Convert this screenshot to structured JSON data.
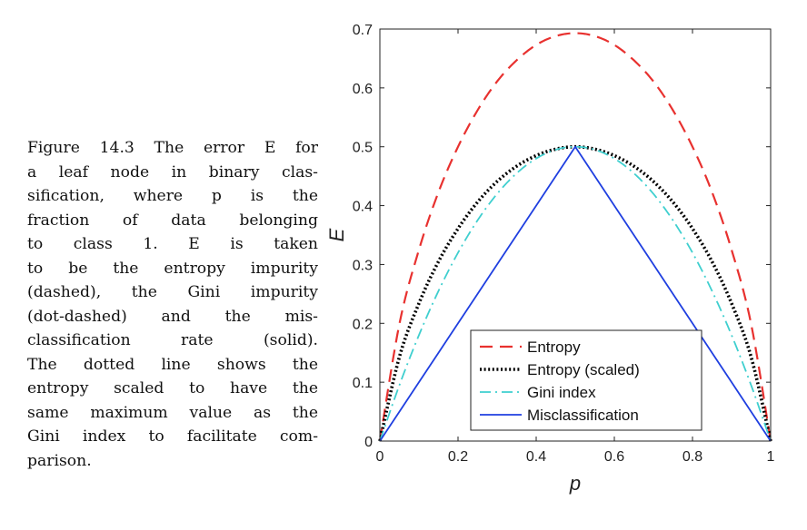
{
  "caption": {
    "lines": [
      "Figure 14.3 The error E for",
      "a leaf node in binary clas-",
      "sification, where p is the",
      "fraction of data belonging",
      "to class 1.   E is taken",
      "to be the entropy impurity",
      "(dashed), the Gini impurity",
      "(dot-dashed) and the mis-",
      "classification rate (solid).",
      "The dotted line shows the",
      "entropy scaled to have the",
      "same maximum value as the",
      "Gini index to facilitate com-",
      "parison."
    ]
  },
  "chart_data": {
    "type": "line",
    "title": "",
    "xlabel": "p",
    "ylabel": "E",
    "xlim": [
      0,
      1
    ],
    "ylim": [
      0,
      0.7
    ],
    "xticks": [
      0,
      0.2,
      0.4,
      0.6,
      0.8,
      1
    ],
    "xtick_labels": [
      "0",
      "0.2",
      "0.4",
      "0.6",
      "0.8",
      "1"
    ],
    "yticks": [
      0,
      0.1,
      0.2,
      0.3,
      0.4,
      0.5,
      0.6,
      0.7
    ],
    "ytick_labels": [
      "0",
      "0.1",
      "0.2",
      "0.3",
      "0.4",
      "0.5",
      "0.6",
      "0.7"
    ],
    "grid": false,
    "legend_position": "bottom-center",
    "x": [
      0,
      0.05,
      0.1,
      0.15,
      0.2,
      0.25,
      0.3,
      0.35,
      0.4,
      0.45,
      0.5,
      0.55,
      0.6,
      0.65,
      0.7,
      0.75,
      0.8,
      0.85,
      0.9,
      0.95,
      1
    ],
    "series": [
      {
        "name": "Entropy",
        "style": "dashed",
        "color": "#e8312f",
        "values": [
          0,
          0.199,
          0.325,
          0.423,
          0.5,
          0.562,
          0.611,
          0.647,
          0.673,
          0.688,
          0.693,
          0.688,
          0.673,
          0.647,
          0.611,
          0.562,
          0.5,
          0.423,
          0.325,
          0.199,
          0
        ]
      },
      {
        "name": "Entropy (scaled)",
        "style": "dotted",
        "color": "#000000",
        "values": [
          0,
          0.143,
          0.234,
          0.305,
          0.361,
          0.406,
          0.441,
          0.467,
          0.485,
          0.496,
          0.5,
          0.496,
          0.485,
          0.467,
          0.441,
          0.406,
          0.361,
          0.305,
          0.234,
          0.143,
          0
        ]
      },
      {
        "name": "Gini index",
        "style": "dash-dot",
        "color": "#3fcfcf",
        "values": [
          0,
          0.095,
          0.18,
          0.255,
          0.32,
          0.375,
          0.42,
          0.455,
          0.48,
          0.495,
          0.5,
          0.495,
          0.48,
          0.455,
          0.42,
          0.375,
          0.32,
          0.255,
          0.18,
          0.095,
          0
        ]
      },
      {
        "name": "Misclassification",
        "style": "solid",
        "color": "#1f3fe0",
        "values": [
          0,
          0.05,
          0.1,
          0.15,
          0.2,
          0.25,
          0.3,
          0.35,
          0.4,
          0.45,
          0.5,
          0.45,
          0.4,
          0.35,
          0.3,
          0.25,
          0.2,
          0.15,
          0.1,
          0.05,
          0
        ]
      }
    ]
  }
}
